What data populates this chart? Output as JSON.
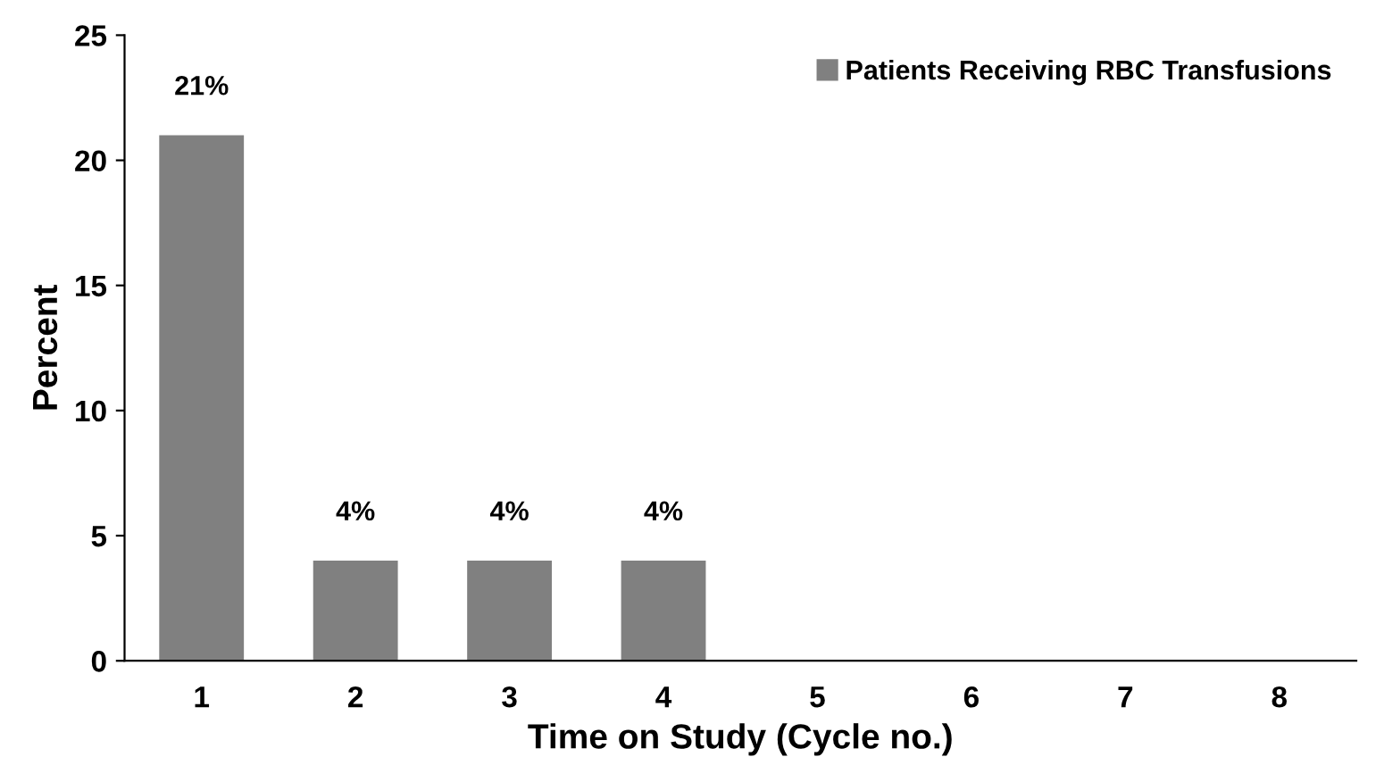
{
  "chart_data": {
    "type": "bar",
    "xlabel": "Time on Study (Cycle no.)",
    "ylabel": "Percent",
    "categories": [
      "1",
      "2",
      "3",
      "4",
      "5",
      "6",
      "7",
      "8"
    ],
    "series": [
      {
        "name": "Patients Receiving RBC Transfusions",
        "color": "#808080",
        "values": [
          21,
          4,
          4,
          4,
          0,
          0,
          0,
          0
        ],
        "value_labels": [
          "21%",
          "4%",
          "4%",
          "4%",
          null,
          null,
          null,
          null
        ]
      }
    ],
    "ylim": [
      0,
      25
    ],
    "yticks": [
      0,
      5,
      10,
      15,
      20,
      25
    ],
    "grid": false,
    "legend": "top right"
  }
}
